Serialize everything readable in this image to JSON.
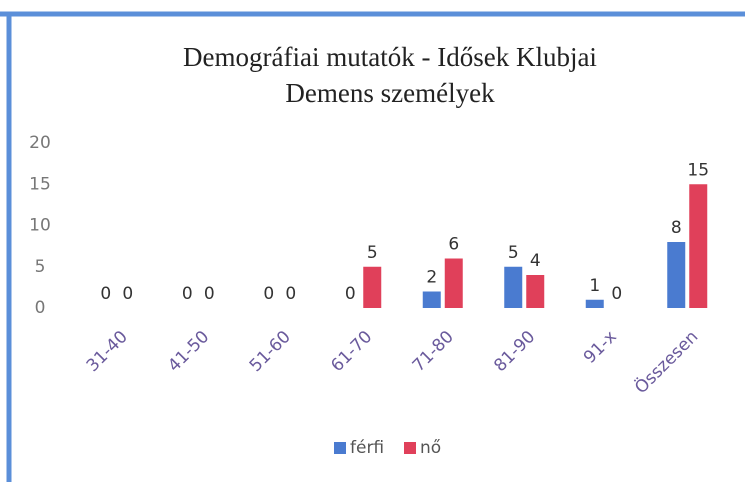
{
  "chart_data": {
    "type": "bar",
    "title": "Demográfiai mutatók - Idősek Klubjai",
    "subtitle": "Demens személyek",
    "categories": [
      "31-40",
      "41-50",
      "51-60",
      "61-70",
      "71-80",
      "81-90",
      "91-x",
      "Összesen"
    ],
    "series": [
      {
        "name": "férfi",
        "color": "#4a7bd0",
        "values": [
          0,
          0,
          0,
          0,
          2,
          5,
          1,
          8
        ]
      },
      {
        "name": "nő",
        "color": "#e0405a",
        "values": [
          0,
          0,
          0,
          5,
          6,
          4,
          0,
          15
        ]
      }
    ],
    "ylim": [
      0,
      20
    ],
    "yticks": [
      0,
      5,
      10,
      15,
      20
    ],
    "grid": false,
    "legend": "bottom"
  }
}
